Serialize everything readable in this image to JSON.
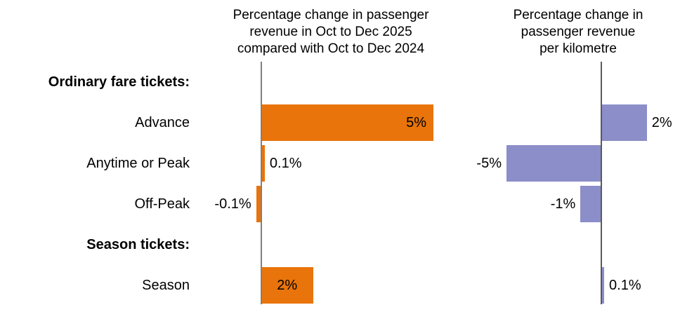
{
  "chart_data": {
    "type": "bar",
    "orientation": "horizontal",
    "background": "#FFFFFF",
    "text_color": "#000000",
    "grid": "off",
    "legend": "none",
    "panels": {
      "left": {
        "title": "Percentage change in passenger revenue in Oct to Dec 2025 compared with Oct to Dec 2024",
        "title_lines": [
          "Percentage change in passenger",
          "revenue in Oct to Dec 2025",
          "compared with Oct to Dec 2024"
        ],
        "bar_color": "#E8740B",
        "axis_color": "#808080"
      },
      "right": {
        "title": "Percentage change in passenger revenue per kilometre",
        "title_lines": [
          "Percentage change in",
          "passenger revenue",
          "per kilometre"
        ],
        "bar_color": "#8B8EC8",
        "axis_color": "#5A5A5A"
      }
    },
    "rows": [
      {
        "label": "Ordinary fare tickets:",
        "bold": true
      },
      {
        "label": "Advance",
        "left_bar": {
          "value": 5.0,
          "display": "5%",
          "label_pos": "inside-right"
        },
        "right_bar": {
          "value": 2.4,
          "display": "2%",
          "label_pos": "outside-right"
        }
      },
      {
        "label": "Anytime or Peak",
        "left_bar": {
          "value": 0.1,
          "display": "0.1%",
          "label_pos": "outside-right"
        },
        "right_bar": {
          "value": -5.0,
          "display": "-5%",
          "label_pos": "outside-left"
        }
      },
      {
        "label": "Off-Peak",
        "left_bar": {
          "value": -0.15,
          "display": "-0.1%",
          "label_pos": "outside-left"
        },
        "right_bar": {
          "value": -1.1,
          "display": "-1%",
          "label_pos": "outside-left"
        }
      },
      {
        "label": "Season tickets:",
        "bold": true
      },
      {
        "label": "Season",
        "left_bar": {
          "value": 1.5,
          "display": "2%",
          "label_pos": "inside-center"
        },
        "right_bar": {
          "value": 0.15,
          "display": "0.1%",
          "label_pos": "outside-right"
        }
      }
    ]
  }
}
